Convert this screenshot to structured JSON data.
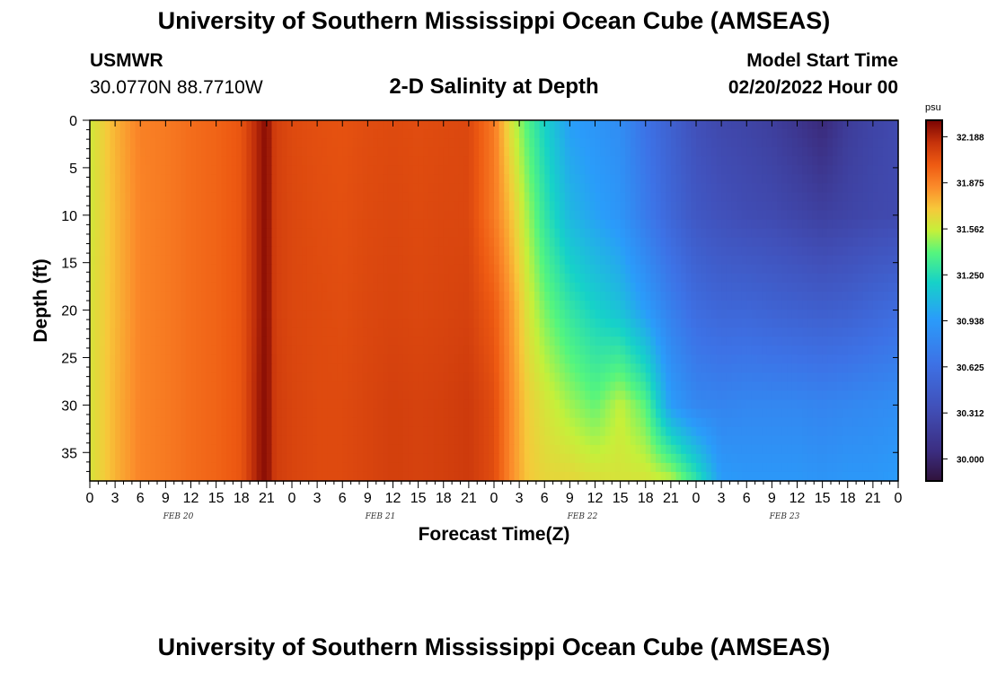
{
  "header": {
    "title": "University of Southern Mississippi Ocean Cube (AMSEAS)",
    "station": "USMWR",
    "coords": "30.0770N  88.7710W",
    "subtitle": "2-D Salinity at Depth",
    "start_label": "Model Start Time",
    "start_date": "02/20/2022 Hour 00"
  },
  "footer": {
    "title": "University of Southern Mississippi Ocean Cube (AMSEAS)"
  },
  "chart_data": {
    "type": "heatmap",
    "title": "2-D Salinity at Depth",
    "xlabel": "Forecast Time(Z)",
    "ylabel": "Depth (ft)",
    "x_unit": "hours from model start",
    "xlim": [
      0,
      96
    ],
    "ylim": [
      0,
      38
    ],
    "y_inverted": true,
    "x_ticks": [
      "0",
      "3",
      "6",
      "9",
      "12",
      "15",
      "18",
      "21",
      "0",
      "3",
      "6",
      "9",
      "12",
      "15",
      "18",
      "21",
      "0",
      "3",
      "6",
      "9",
      "12",
      "15",
      "18",
      "21",
      "0",
      "3",
      "6",
      "9",
      "12",
      "15",
      "18",
      "21",
      "0"
    ],
    "y_ticks": [
      0,
      5,
      10,
      15,
      20,
      25,
      30,
      35
    ],
    "day_labels": [
      "FEB 20",
      "FEB 21",
      "FEB 22",
      "FEB 23"
    ],
    "colorbar": {
      "unit": "psu",
      "min": 29.85,
      "max": 32.3,
      "ticks": [
        32.188,
        31.875,
        31.562,
        31.25,
        30.938,
        30.625,
        30.312,
        30.0
      ],
      "tick_labels": [
        "32.188",
        "31.875",
        "31.562",
        "31.250",
        "30.938",
        "30.625",
        "30.312",
        "30.000"
      ],
      "colormap": [
        {
          "value": 29.85,
          "color": "#30123b"
        },
        {
          "value": 30.05,
          "color": "#3b2d80"
        },
        {
          "value": 30.35,
          "color": "#4150b9"
        },
        {
          "value": 30.65,
          "color": "#3d72e6"
        },
        {
          "value": 30.95,
          "color": "#2a9cfa"
        },
        {
          "value": 31.2,
          "color": "#16d2c8"
        },
        {
          "value": 31.4,
          "color": "#55f57e"
        },
        {
          "value": 31.55,
          "color": "#c5f03a"
        },
        {
          "value": 31.7,
          "color": "#f7c83a"
        },
        {
          "value": 31.85,
          "color": "#fb8a2a"
        },
        {
          "value": 32.0,
          "color": "#ee5a12"
        },
        {
          "value": 32.15,
          "color": "#c5320b"
        },
        {
          "value": 32.3,
          "color": "#7a0403"
        }
      ]
    },
    "time_hours": [
      0,
      3,
      6,
      9,
      12,
      15,
      18,
      20,
      21,
      22,
      24,
      27,
      30,
      33,
      36,
      39,
      42,
      45,
      48,
      50,
      52,
      54,
      57,
      60,
      63,
      66,
      69,
      72,
      75,
      78,
      81,
      84,
      87,
      90,
      93,
      96
    ],
    "depths_ft": [
      0,
      10,
      20,
      30,
      38
    ],
    "salinity_psu": [
      [
        31.58,
        31.75,
        31.88,
        31.9,
        31.94,
        31.97,
        32.02,
        32.2,
        32.28,
        32.1,
        32.06,
        32.04,
        32.03,
        32.05,
        32.06,
        32.05,
        32.06,
        32.07,
        31.9,
        31.6,
        31.38,
        31.2,
        30.96,
        30.9,
        30.84,
        30.65,
        30.5,
        30.35,
        30.28,
        30.25,
        30.2,
        30.12,
        30.02,
        30.18,
        30.25,
        30.3
      ],
      [
        31.58,
        31.74,
        31.87,
        31.9,
        31.94,
        31.97,
        32.02,
        32.2,
        32.28,
        32.1,
        32.07,
        32.05,
        32.04,
        32.06,
        32.07,
        32.06,
        32.07,
        32.07,
        31.9,
        31.72,
        31.5,
        31.3,
        31.08,
        30.98,
        30.9,
        30.72,
        30.55,
        30.42,
        30.36,
        30.32,
        30.3,
        30.26,
        30.22,
        30.25,
        30.28,
        30.3
      ],
      [
        31.6,
        31.74,
        31.87,
        31.9,
        31.94,
        31.97,
        32.02,
        32.2,
        32.28,
        32.1,
        32.07,
        32.06,
        32.05,
        32.07,
        32.08,
        32.07,
        32.08,
        32.09,
        32.0,
        31.82,
        31.6,
        31.45,
        31.3,
        31.2,
        31.12,
        30.95,
        30.75,
        30.6,
        30.55,
        30.55,
        30.52,
        30.5,
        30.48,
        30.5,
        30.55,
        30.6
      ],
      [
        31.6,
        31.75,
        31.87,
        31.9,
        31.94,
        31.97,
        32.02,
        32.22,
        32.28,
        32.11,
        32.08,
        32.06,
        32.06,
        32.08,
        32.1,
        32.09,
        32.1,
        32.12,
        32.05,
        31.85,
        31.68,
        31.6,
        31.5,
        31.42,
        31.55,
        31.4,
        30.95,
        30.8,
        30.78,
        30.8,
        30.8,
        30.8,
        30.78,
        30.8,
        30.82,
        30.85
      ],
      [
        31.6,
        31.75,
        31.87,
        31.9,
        31.94,
        31.97,
        32.02,
        32.22,
        32.28,
        32.11,
        32.08,
        32.06,
        32.06,
        32.08,
        32.1,
        32.09,
        32.1,
        32.12,
        32.05,
        31.85,
        31.7,
        31.65,
        31.65,
        31.62,
        31.6,
        31.6,
        31.55,
        31.3,
        30.95,
        30.92,
        30.92,
        30.92,
        30.9,
        30.92,
        30.92,
        30.95
      ]
    ]
  }
}
